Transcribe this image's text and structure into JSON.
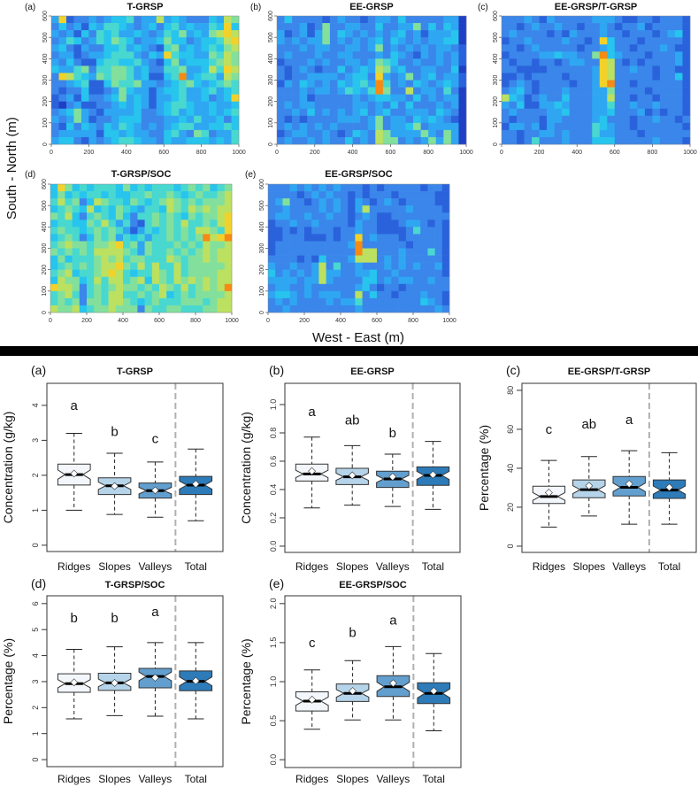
{
  "figure": {
    "heatmap_ylabel": "South - North (m)",
    "heatmap_xlabel": "West - East (m)"
  },
  "chart_data": [
    {
      "type": "heatmap",
      "panel": "(a)",
      "title": "T-GRSP",
      "xlim": [
        0,
        1000
      ],
      "ylim": [
        0,
        600
      ],
      "xticks": [
        "0",
        "200",
        "400",
        "600",
        "800",
        "1000"
      ],
      "yticks": [
        "0",
        "100",
        "200",
        "300",
        "400",
        "500",
        "600"
      ],
      "colorscale": [
        "#1f3fc4",
        "#2a62dc",
        "#3a86ea",
        "#2fa6f2",
        "#27c4ee",
        "#48d8d0",
        "#82e09c",
        "#bce060",
        "#f2d22a",
        "#f58a14"
      ],
      "levels_rows_north_to_south": [
        "3812232344523373432224376",
        "2423143554323424534335484",
        "3231425453343235463436787",
        "2354235465423346442344578",
        "3421322445343215634345467",
        "2331233455532438544336576",
        "3242114554453214634445676",
        "4335625566534225563347587",
        "2875436566534114593455376",
        "2234511465563323456434565",
        "2122411236433134453345345",
        "1231422346343133453342348",
        "1023112234343134554334334",
        "2346321333342234534334345",
        "3236312234442223343533424",
        "2142432435432323455334454",
        "2333331443433224532652335",
        "3442132345543324334443435"
      ]
    },
    {
      "type": "heatmap",
      "panel": "(b)",
      "title": "EE-GRSP",
      "xlim": [
        0,
        1000
      ],
      "ylim": [
        0,
        600
      ],
      "xticks": [
        "0",
        "200",
        "400",
        "600",
        "800",
        "1000"
      ],
      "yticks": [
        "0",
        "100",
        "200",
        "300",
        "400",
        "500",
        "600"
      ],
      "levels_rows_north_to_south": [
        "2422221232212332422222330",
        "2223126223322422336242430",
        "3123136243232323423133340",
        "3232336232323424323233440",
        "2223233223323623232323321",
        "2322232233222324321323231",
        "1222323223323654223223231",
        "2123212242343763422332240",
        "2122333323442832362342331",
        "1324323243453952324323431",
        "2223233235435962272332520",
        "2223122222323443324232330",
        "2323322222332324242223230",
        "2232423232342342233324320",
        "2121222233323623324343210",
        "2323232322223623346233330",
        "1233223212432763333632630",
        "2322323224232766232363630"
      ]
    },
    {
      "type": "heatmap",
      "panel": "(c)",
      "title": "EE-GRSP/T-GRSP",
      "xlim": [
        0,
        1000
      ],
      "ylim": [
        0,
        600
      ],
      "xticks": [
        "0",
        "200",
        "400",
        "600",
        "800",
        "1000"
      ],
      "yticks": [
        "0",
        "100",
        "200",
        "300",
        "400",
        "500",
        "600"
      ],
      "levels_rows_north_to_south": [
        "2223213222223332112212221",
        "2212322322122321223122221",
        "2322221213222322122212341",
        "1223222232212842221222221",
        "2212322222122342212223211",
        "1222233433226943222122231",
        "2122122123322872121222231",
        "2211112222223872232212211",
        "1121222212223872222212241",
        "1232122221223892212222221",
        "2342122232223362222122221",
        "7431232242223372212212221",
        "3241133432223352232232221",
        "2322223342223342223121221",
        "2122213322223422212232212",
        "1332313222225432212222221",
        "2212233232225332221222222",
        "2212522232224442222232221"
      ]
    },
    {
      "type": "heatmap",
      "panel": "(d)",
      "title": "T-GRSP/SOC",
      "xlim": [
        0,
        1000
      ],
      "ylim": [
        0,
        600
      ],
      "xticks": [
        "0",
        "200",
        "400",
        "600",
        "800",
        "1000"
      ],
      "yticks": [
        "0",
        "100",
        "200",
        "300",
        "400",
        "500",
        "600"
      ],
      "levels_rows_north_to_south": [
        "4864545554645455545656456",
        "4645455454455655654565567",
        "5756247655465456765656667",
        "4565474546543554765767677",
        "6574256546425565654656678",
        "4554465753521565657556578",
        "5655456565313545656577658",
        "4565246563545355656569789",
        "5676656678563655565657667",
        "6565657777653655656567677",
        "4645556767566555765667677",
        "4565656778657575575666667",
        "5674556787545576575666677",
        "4766457577567476576767677",
        "8776256567665657657567679",
        "5675256577556567456566667",
        "5656266577654565556665677",
        "7667456676662655665556677"
      ]
    },
    {
      "type": "heatmap",
      "panel": "(e)",
      "title": "EE-GRSP/SOC",
      "xlim": [
        0,
        1000
      ],
      "ylim": [
        0,
        600
      ],
      "xticks": [
        "0",
        "200",
        "400",
        "600",
        "800",
        "1000"
      ],
      "yticks": [
        "0",
        "100",
        "200",
        "300",
        "400",
        "500",
        "600"
      ],
      "levels_rows_north_to_south": [
        "2223232323222121222221221",
        "2222123232212122212222211",
        "2362212323213212321222211",
        "2232222323213722222322221",
        "2332232232212321122222222",
        "1223223222213221112332121",
        "1121212221223221111252221",
        "1122211121228232221222221",
        "1222222222239222222122221",
        "1222222222229772223222521",
        "2222121422237772323222221",
        "3223223725223222323232231",
        "4232323733223342232222221",
        "3333233732222442323322322",
        "2332232222223421221222222",
        "3443232333227242212223221",
        "2323222232335222222224321",
        "2232222222223222222222232"
      ]
    },
    {
      "type": "box",
      "panel": "(a)",
      "title": "T-GRSP",
      "ylabel": "Concentration (g/kg)",
      "ylim": [
        -0.18,
        4.63
      ],
      "yticks": [
        0,
        1,
        2,
        3,
        4
      ],
      "ytick_labels": [
        "0",
        "1",
        "2",
        "3",
        "4"
      ],
      "categories": [
        "Ridges",
        "Slopes",
        "Valleys",
        "Total"
      ],
      "letters": [
        "a",
        "b",
        "c",
        ""
      ],
      "letter_y": [
        4.0,
        3.25,
        3.05,
        null
      ],
      "boxes": [
        {
          "min": 1.0,
          "q1": 1.72,
          "median": 2.02,
          "q3": 2.32,
          "max": 3.2,
          "mean": 2.05
        },
        {
          "min": 0.88,
          "q1": 1.45,
          "median": 1.7,
          "q3": 1.93,
          "max": 2.63,
          "mean": 1.69
        },
        {
          "min": 0.8,
          "q1": 1.35,
          "median": 1.56,
          "q3": 1.78,
          "max": 2.38,
          "mean": 1.57
        },
        {
          "min": 0.7,
          "q1": 1.45,
          "median": 1.72,
          "q3": 1.97,
          "max": 2.75,
          "mean": 1.75
        }
      ]
    },
    {
      "type": "box",
      "panel": "(b)",
      "title": "EE-GRSP",
      "ylabel": "Concentration (g/kg)",
      "ylim": [
        -0.044,
        1.15
      ],
      "yticks": [
        0,
        0.2,
        0.4,
        0.6,
        0.8,
        1.0
      ],
      "ytick_labels": [
        "0.0",
        "0.2",
        "0.4",
        "0.6",
        "0.8",
        "1.0"
      ],
      "categories": [
        "Ridges",
        "Slopes",
        "Valleys",
        "Total"
      ],
      "letters": [
        "a",
        "ab",
        "b",
        ""
      ],
      "letter_y": [
        0.95,
        0.89,
        0.8,
        null
      ],
      "boxes": [
        {
          "min": 0.27,
          "q1": 0.46,
          "median": 0.51,
          "q3": 0.58,
          "max": 0.77,
          "mean": 0.53
        },
        {
          "min": 0.29,
          "q1": 0.435,
          "median": 0.49,
          "q3": 0.55,
          "max": 0.71,
          "mean": 0.5
        },
        {
          "min": 0.28,
          "q1": 0.415,
          "median": 0.475,
          "q3": 0.53,
          "max": 0.65,
          "mean": 0.49
        },
        {
          "min": 0.26,
          "q1": 0.43,
          "median": 0.5,
          "q3": 0.56,
          "max": 0.74,
          "mean": 0.505
        }
      ]
    },
    {
      "type": "box",
      "panel": "(c)",
      "title": "EE-GRSP/T-GRSP",
      "ylabel": "Percentage (%)",
      "ylim": [
        -3.2,
        83.6
      ],
      "yticks": [
        0,
        20,
        40,
        60,
        80
      ],
      "ytick_labels": [
        "0",
        "20",
        "40",
        "60",
        "80"
      ],
      "categories": [
        "Ridges",
        "Slopes",
        "Valleys",
        "Total"
      ],
      "letters": [
        "c",
        "ab",
        "a",
        ""
      ],
      "letter_y": [
        60,
        62.6,
        65,
        null
      ],
      "boxes": [
        {
          "min": 9.8,
          "q1": 21.9,
          "median": 25.5,
          "q3": 30.8,
          "max": 44,
          "mean": 27.5
        },
        {
          "min": 15.5,
          "q1": 24.9,
          "median": 29,
          "q3": 34,
          "max": 46,
          "mean": 31
        },
        {
          "min": 11.3,
          "q1": 25.8,
          "median": 30.2,
          "q3": 35.8,
          "max": 49,
          "mean": 32
        },
        {
          "min": 11.3,
          "q1": 24.5,
          "median": 28.8,
          "q3": 34,
          "max": 48,
          "mean": 30.2
        }
      ]
    },
    {
      "type": "box",
      "panel": "(d)",
      "title": "T-GRSP/SOC",
      "ylabel": "Percentage (%)",
      "ylim": [
        -0.27,
        6.3
      ],
      "yticks": [
        0,
        1,
        2,
        3,
        4,
        5,
        6
      ],
      "ytick_labels": [
        "0",
        "1",
        "2",
        "3",
        "4",
        "5",
        "6"
      ],
      "categories": [
        "Ridges",
        "Slopes",
        "Valleys",
        "Total"
      ],
      "letters": [
        "b",
        "b",
        "a",
        ""
      ],
      "letter_y": [
        5.45,
        5.45,
        5.68,
        null
      ],
      "boxes": [
        {
          "min": 1.57,
          "q1": 2.59,
          "median": 2.92,
          "q3": 3.3,
          "max": 4.24,
          "mean": 2.97
        },
        {
          "min": 1.69,
          "q1": 2.66,
          "median": 2.95,
          "q3": 3.32,
          "max": 4.34,
          "mean": 2.95
        },
        {
          "min": 1.67,
          "q1": 2.76,
          "median": 3.2,
          "q3": 3.51,
          "max": 4.5,
          "mean": 3.15
        },
        {
          "min": 1.57,
          "q1": 2.65,
          "median": 3.01,
          "q3": 3.41,
          "max": 4.5,
          "mean": 3.03
        }
      ]
    },
    {
      "type": "box",
      "panel": "(e)",
      "title": "EE-GRSP/SOC",
      "ylabel": "Percentage (%)",
      "ylim": [
        -0.1,
        2.1
      ],
      "yticks": [
        0,
        0.5,
        1.0,
        1.5,
        2.0
      ],
      "ytick_labels": [
        "0.0",
        "0.5",
        "1.0",
        "1.5",
        "2.0"
      ],
      "categories": [
        "Ridges",
        "Slopes",
        "Valleys",
        "Total"
      ],
      "letters": [
        "c",
        "b",
        "a",
        ""
      ],
      "letter_y": [
        1.5,
        1.63,
        1.79,
        null
      ],
      "boxes": [
        {
          "min": 0.39,
          "q1": 0.625,
          "median": 0.75,
          "q3": 0.87,
          "max": 1.15,
          "mean": 0.77
        },
        {
          "min": 0.51,
          "q1": 0.746,
          "median": 0.85,
          "q3": 0.97,
          "max": 1.27,
          "mean": 0.88
        },
        {
          "min": 0.51,
          "q1": 0.81,
          "median": 0.935,
          "q3": 1.076,
          "max": 1.45,
          "mean": 0.98
        },
        {
          "min": 0.37,
          "q1": 0.72,
          "median": 0.85,
          "q3": 0.985,
          "max": 1.36,
          "mean": 0.88
        }
      ]
    }
  ],
  "box_colors": [
    "#f3f7fc",
    "#b5d4e9",
    "#629fcf",
    "#2d7bb8"
  ],
  "separator_color": "#b0b0b0",
  "band_color": "#000000"
}
